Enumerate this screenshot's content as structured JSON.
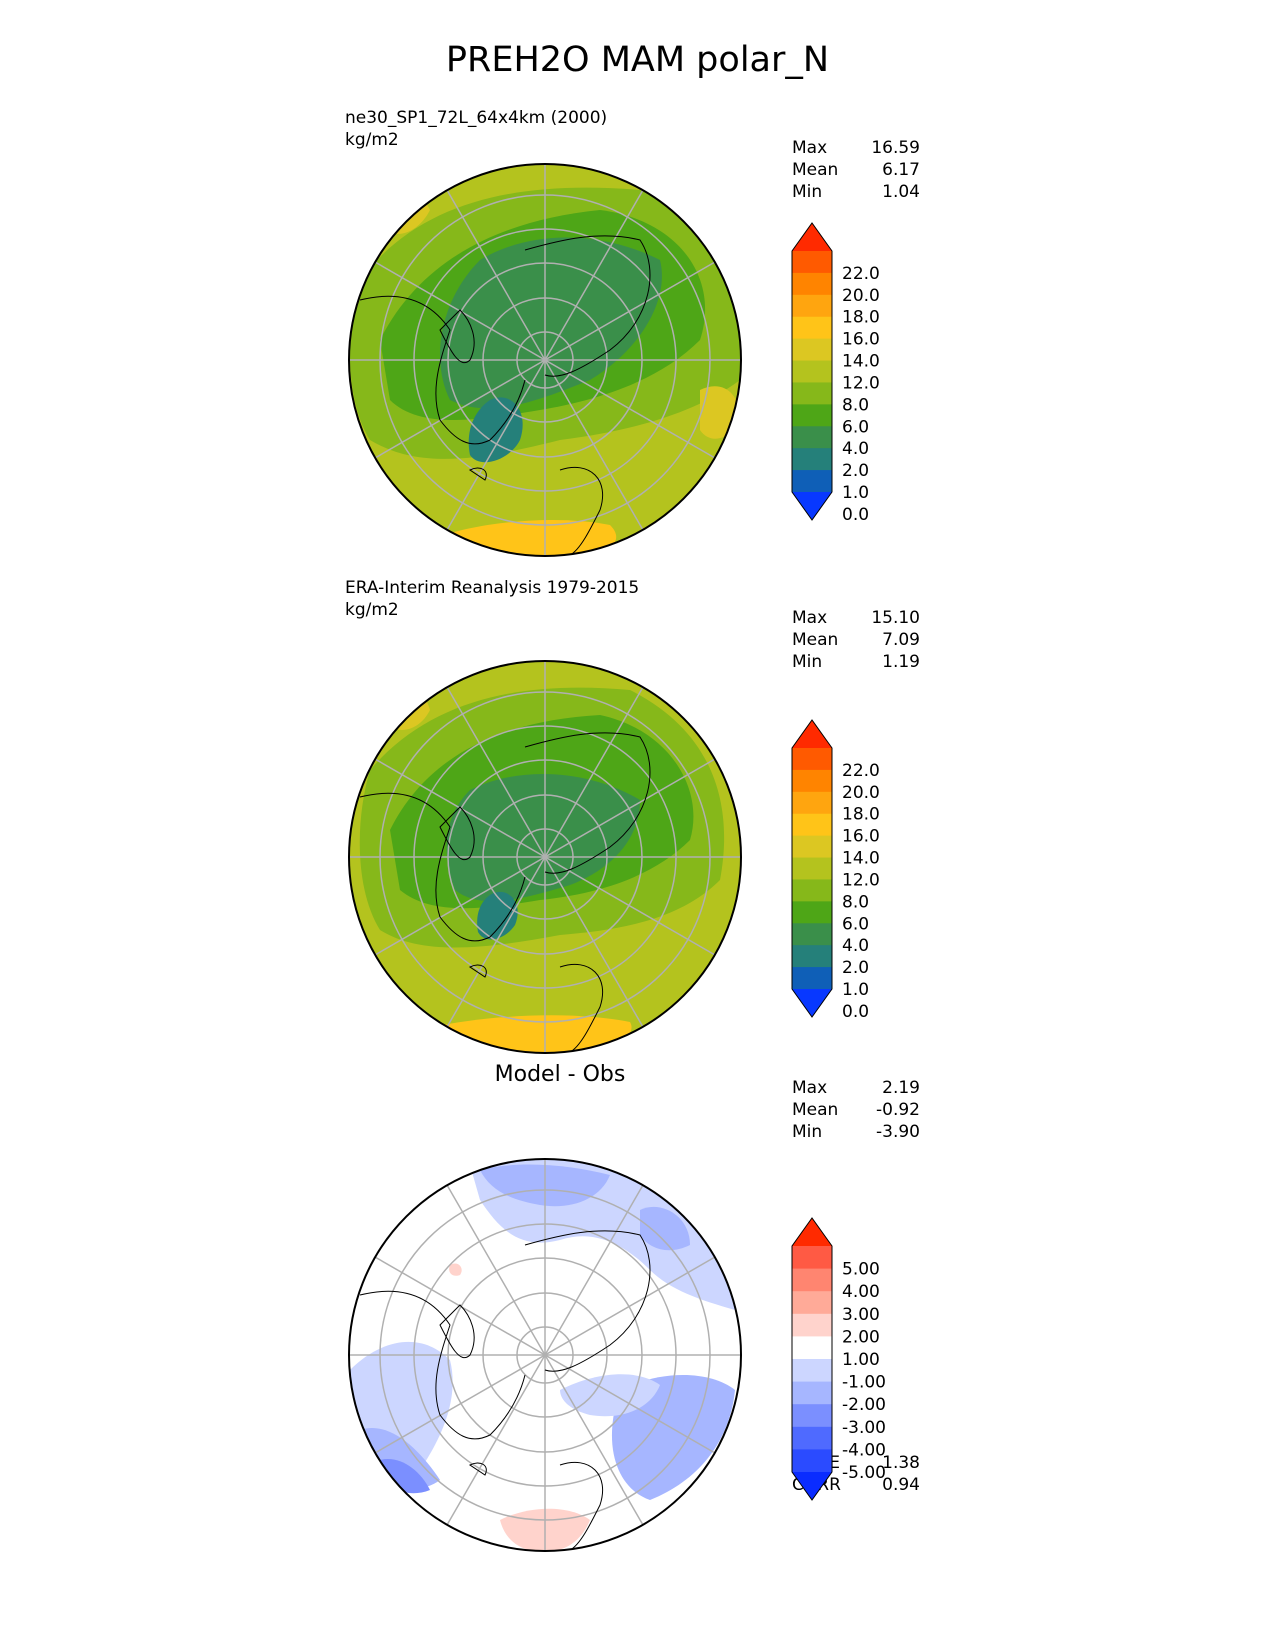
{
  "title": "PREH2O MAM polar_N",
  "panels": [
    {
      "subtitle": "ne30_SP1_72L_64x4km (2000)",
      "units": "kg/m2",
      "stats": [
        {
          "label": "Max",
          "value": "16.59"
        },
        {
          "label": "Mean",
          "value": "6.17"
        },
        {
          "label": "Min",
          "value": "1.04"
        }
      ],
      "colorbar_labels": [
        "22.0",
        "20.0",
        "18.0",
        "16.0",
        "14.0",
        "12.0",
        "8.0",
        "6.0",
        "4.0",
        "2.0",
        "1.0",
        "0.0"
      ]
    },
    {
      "subtitle": "ERA-Interim Reanalysis 1979-2015",
      "units": "kg/m2",
      "stats": [
        {
          "label": "Max",
          "value": "15.10"
        },
        {
          "label": "Mean",
          "value": "7.09"
        },
        {
          "label": "Min",
          "value": "1.19"
        }
      ],
      "colorbar_labels": [
        "22.0",
        "20.0",
        "18.0",
        "16.0",
        "14.0",
        "12.0",
        "8.0",
        "6.0",
        "4.0",
        "2.0",
        "1.0",
        "0.0"
      ]
    },
    {
      "plot_title": "Model - Obs",
      "stats": [
        {
          "label": "Max",
          "value": "2.19"
        },
        {
          "label": "Mean",
          "value": "-0.92"
        },
        {
          "label": "Min",
          "value": "-3.90"
        }
      ],
      "colorbar_labels": [
        "5.00",
        "4.00",
        "3.00",
        "2.00",
        "1.00",
        "-1.00",
        "-2.00",
        "-3.00",
        "-4.00",
        "-5.00"
      ],
      "metrics": [
        {
          "label": "RMSE",
          "value": "1.38"
        },
        {
          "label": "CORR",
          "value": "0.94"
        }
      ]
    }
  ],
  "colors": {
    "field_scale": [
      "#ff2a00",
      "#ff5a00",
      "#ff8400",
      "#ffa50f",
      "#ffc418",
      "#dcc722",
      "#b4c31e",
      "#86b81a",
      "#4ea617",
      "#3a8f4a",
      "#25807a",
      "#0f5fb7",
      "#0838ff"
    ],
    "diff_scale": [
      "#ff2a00",
      "#ff5a44",
      "#ff8570",
      "#ffaa98",
      "#ffd3cc",
      "#ffffff",
      "#ccd6ff",
      "#a6b6ff",
      "#7b8fff",
      "#4f6aff",
      "#2b4bff",
      "#0a2cff"
    ],
    "grid": "#b0b0b0",
    "coast": "#000000"
  }
}
